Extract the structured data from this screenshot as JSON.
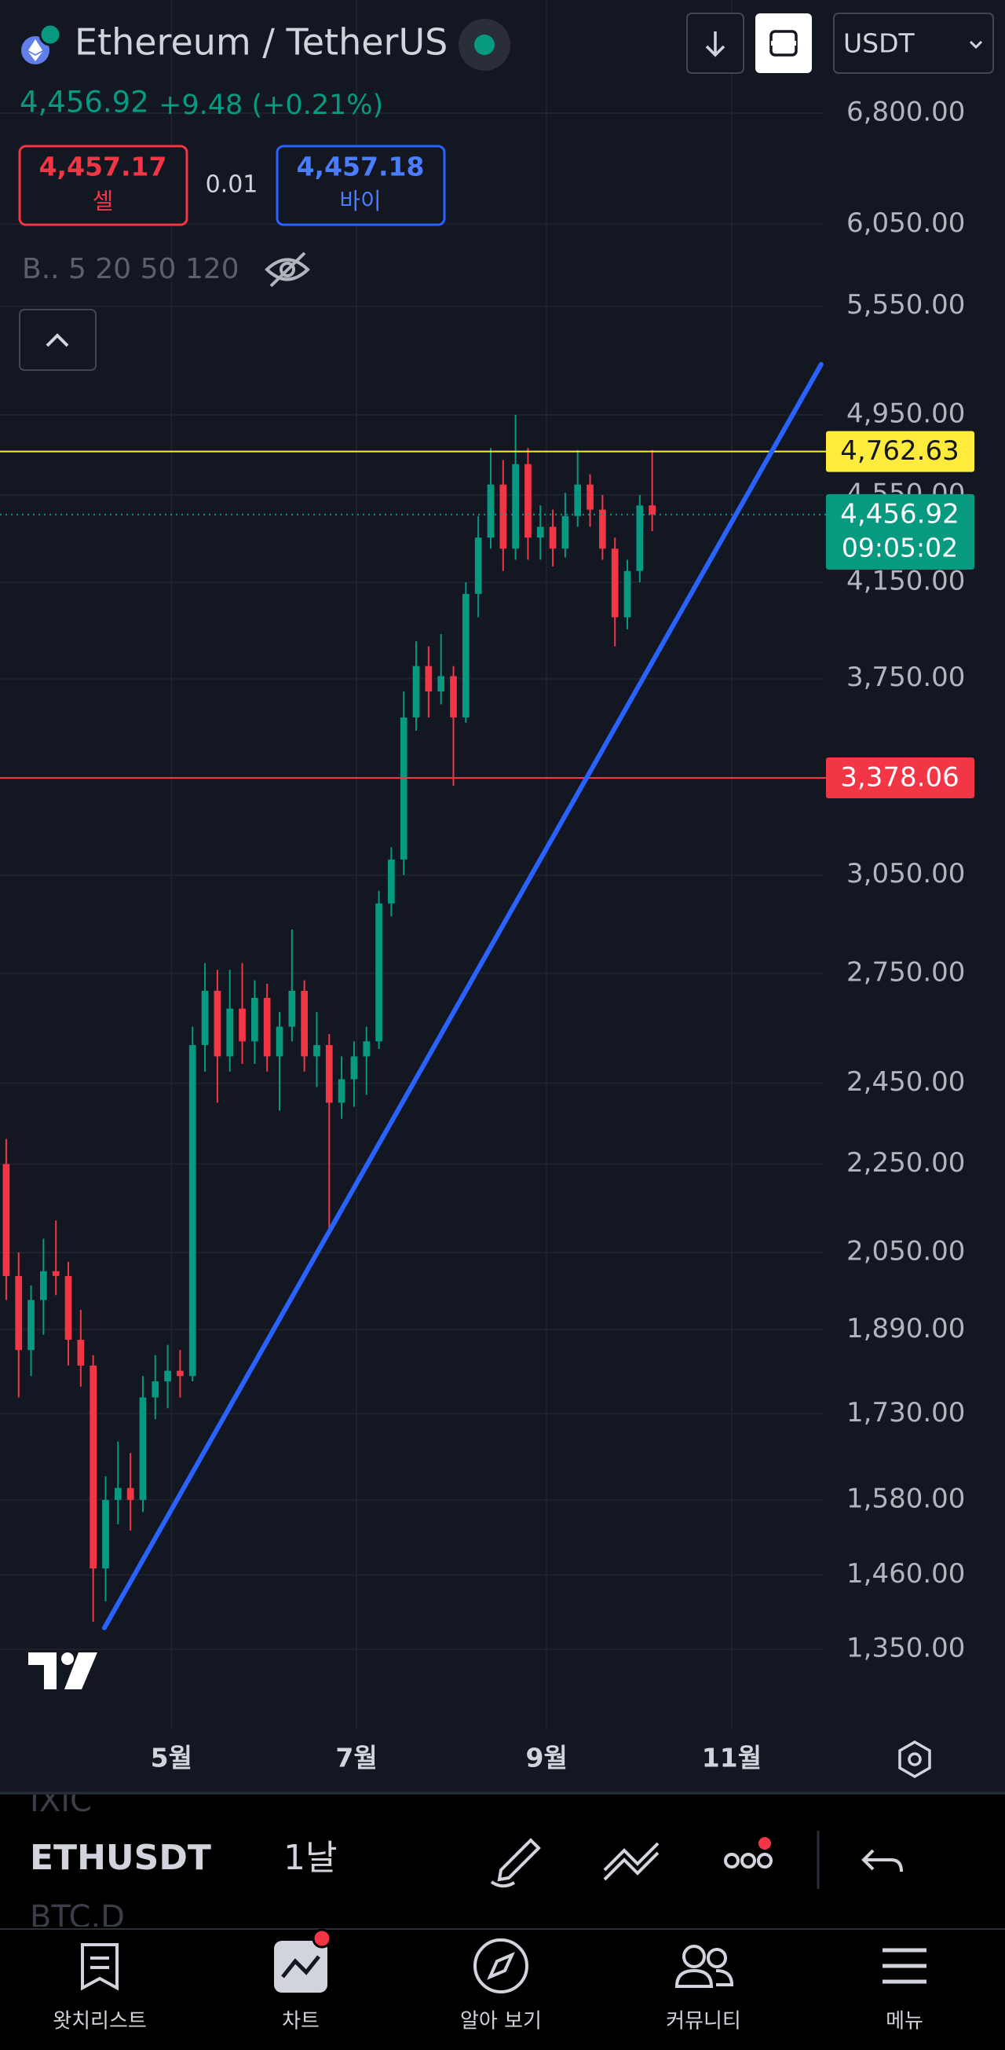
{
  "header": {
    "title": "Ethereum / TetherUS",
    "price": "4,456.92",
    "change": "+9.48 (+0.21%)",
    "currency": "USDT"
  },
  "order": {
    "sell_price": "4,457.17",
    "sell_label": "셀",
    "spread": "0.01",
    "buy_price": "4,457.18",
    "buy_label": "바이"
  },
  "indicators": "B.. 5 20 50 120",
  "toolbar": {
    "symbol": "ETHUSDT",
    "interval": "1날",
    "ghost_above": "IXIC",
    "ghost_below": "BTC.D"
  },
  "nav": [
    "왓치리스트",
    "차트",
    "알아 보기",
    "커뮤니티",
    "메뉴"
  ],
  "chart_data": {
    "type": "candlestick",
    "log_scale": true,
    "grid": true,
    "up_color": "#089981",
    "down_color": "#f23645",
    "open": [
      2250,
      2000,
      1850,
      1950,
      2010,
      2000,
      1870,
      1820,
      1470,
      1580,
      1600,
      1580,
      1760,
      1790,
      1810,
      1800,
      2550,
      2700,
      2520,
      2650,
      2560,
      2680,
      2520,
      2600,
      2700,
      2520,
      2550,
      2400,
      2460,
      2520,
      2560,
      2960,
      3100,
      3600,
      3800,
      3700,
      3760,
      3600,
      4100,
      4350,
      4600,
      4300,
      4700,
      4350,
      4400,
      4300,
      4450,
      4600,
      4480,
      4300,
      4000,
      4200,
      4500
    ],
    "high": [
      2310,
      2050,
      1980,
      2080,
      2120,
      2030,
      1930,
      1840,
      1620,
      1680,
      1660,
      1800,
      1840,
      1860,
      1850,
      2600,
      2780,
      2760,
      2760,
      2780,
      2730,
      2720,
      2640,
      2880,
      2730,
      2640,
      2580,
      2520,
      2560,
      2600,
      3000,
      3140,
      3700,
      3900,
      3880,
      3930,
      3800,
      4150,
      4450,
      4780,
      4720,
      4950,
      4780,
      4500,
      4480,
      4560,
      4770,
      4650,
      4550,
      4350,
      4250,
      4550,
      4770
    ],
    "low": [
      1950,
      1760,
      1800,
      1880,
      1960,
      1820,
      1780,
      1390,
      1420,
      1540,
      1530,
      1560,
      1720,
      1740,
      1760,
      1790,
      2480,
      2400,
      2480,
      2500,
      2500,
      2480,
      2380,
      2560,
      2480,
      2440,
      2100,
      2360,
      2390,
      2420,
      2540,
      2920,
      3050,
      3550,
      3600,
      3650,
      3350,
      3580,
      4000,
      4300,
      4200,
      4250,
      4250,
      4250,
      4220,
      4260,
      4400,
      4400,
      4250,
      3880,
      3950,
      4150,
      4380
    ],
    "close": [
      2000,
      1850,
      1950,
      2010,
      2000,
      1870,
      1820,
      1470,
      1580,
      1600,
      1580,
      1760,
      1790,
      1810,
      1800,
      2550,
      2700,
      2520,
      2650,
      2560,
      2680,
      2520,
      2600,
      2700,
      2520,
      2550,
      2400,
      2460,
      2520,
      2560,
      2960,
      3100,
      3600,
      3800,
      3700,
      3760,
      3600,
      4100,
      4350,
      4600,
      4300,
      4700,
      4350,
      4400,
      4300,
      4450,
      4600,
      4480,
      4300,
      4000,
      4200,
      4500,
      4456.92
    ],
    "xlim": [
      -0.5,
      65.8
    ],
    "xticks": [
      {
        "value": 13.3,
        "label": "5월"
      },
      {
        "value": 28.2,
        "label": "7월"
      },
      {
        "value": 43.5,
        "label": "9월"
      },
      {
        "value": 58.4,
        "label": "11월"
      }
    ],
    "ylim": [
      1242,
      7660
    ],
    "yticks": [
      {
        "value": 6800,
        "label": "6,800.00"
      },
      {
        "value": 6050,
        "label": "6,050.00"
      },
      {
        "value": 5550,
        "label": "5,550.00"
      },
      {
        "value": 4950,
        "label": "4,950.00"
      },
      {
        "value": 4550,
        "label": "4,550.00"
      },
      {
        "value": 4150,
        "label": "4,150.00"
      },
      {
        "value": 3750,
        "label": "3,750.00"
      },
      {
        "value": 3050,
        "label": "3,050.00"
      },
      {
        "value": 2750,
        "label": "2,750.00"
      },
      {
        "value": 2450,
        "label": "2,450.00"
      },
      {
        "value": 2250,
        "label": "2,250.00"
      },
      {
        "value": 2050,
        "label": "2,050.00"
      },
      {
        "value": 1890,
        "label": "1,890.00"
      },
      {
        "value": 1730,
        "label": "1,730.00"
      },
      {
        "value": 1580,
        "label": "1,580.00"
      },
      {
        "value": 1460,
        "label": "1,460.00"
      },
      {
        "value": 1350,
        "label": "1,350.00"
      }
    ],
    "hlines": [
      {
        "value": 4762.63,
        "label": "4,762.63",
        "color": "#ffeb3b"
      },
      {
        "value": 3378.06,
        "label": "3,378.06",
        "color": "#f23645"
      }
    ],
    "last": {
      "value": 4456.92,
      "label": "4,456.92",
      "countdown": "09:05:02",
      "color": "#089981"
    },
    "trendline": {
      "x": [
        7.9,
        65.6
      ],
      "y": [
        1381,
        5220
      ],
      "color": "#2962ff"
    }
  }
}
